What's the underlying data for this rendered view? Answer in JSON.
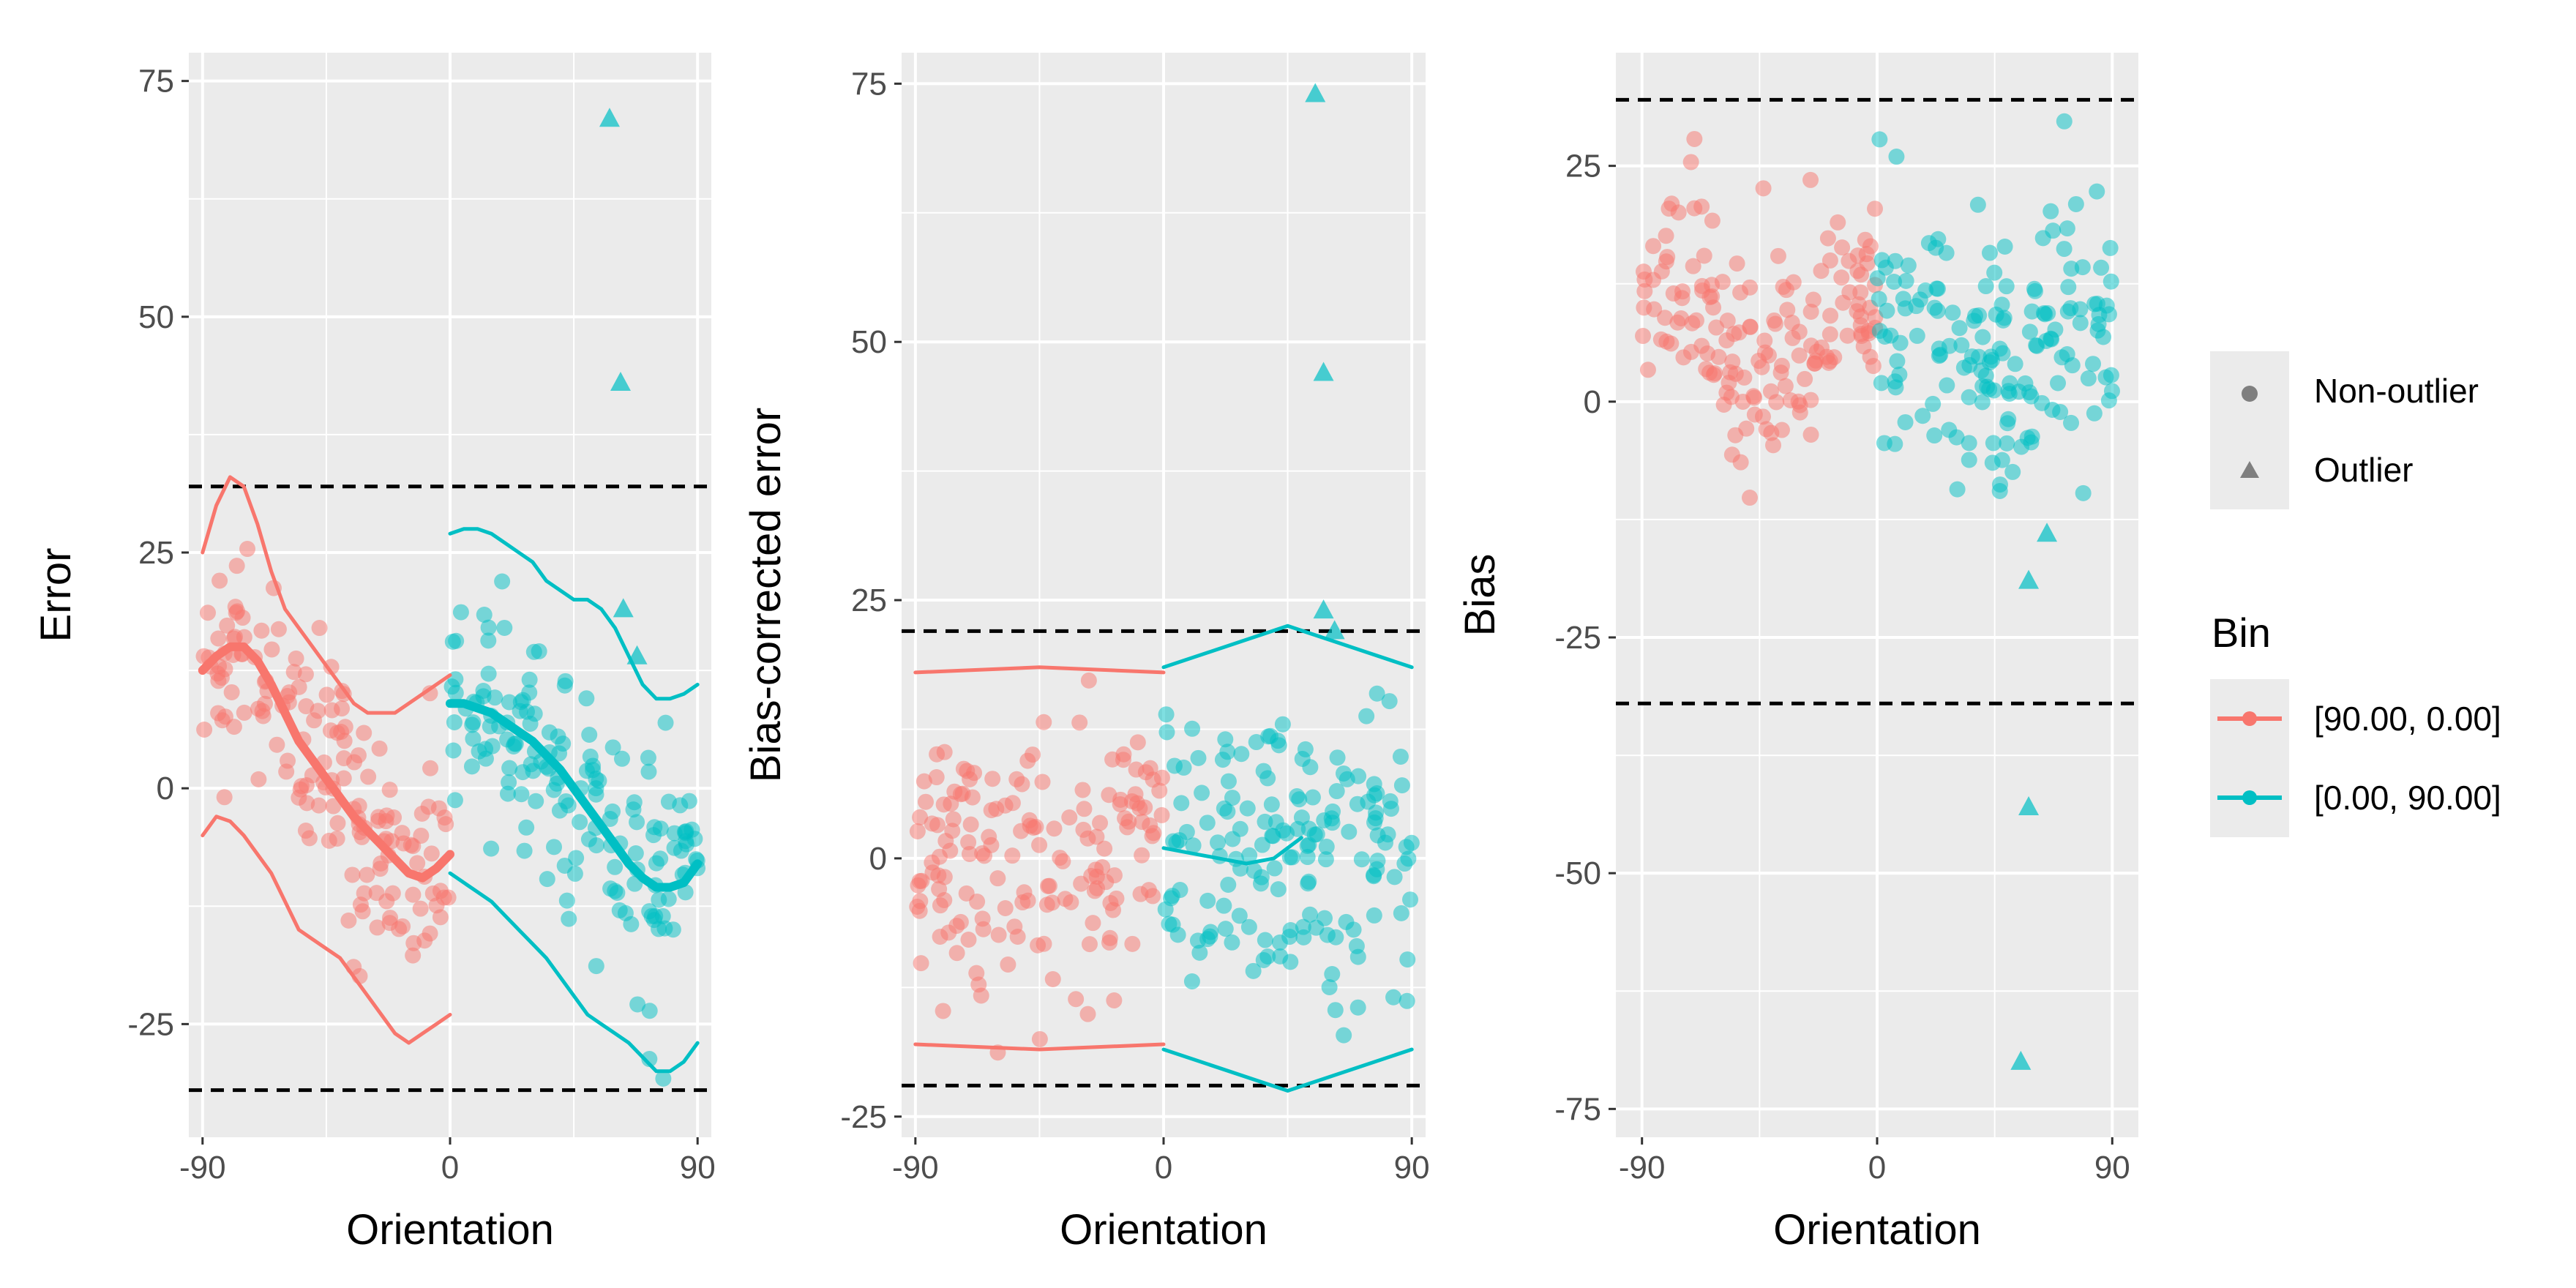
{
  "chart_data": [
    {
      "id": "error",
      "type": "scatter",
      "xlabel": "Orientation",
      "ylabel": "Error",
      "xlim": [
        -95,
        95
      ],
      "ylim": [
        -37,
        78
      ],
      "xticks": [
        -90,
        0,
        90
      ],
      "xtick_labels": [
        "-90",
        "0",
        "90"
      ],
      "yticks": [
        -25,
        0,
        25,
        50,
        75
      ],
      "ytick_labels": [
        "-25",
        "0",
        "25",
        "50",
        "75"
      ],
      "hlines": [
        32,
        -32
      ],
      "seed": 11,
      "points_per_bin": 160,
      "scatter_model": {
        "bin_a_center": [
          [
            -90,
            12
          ],
          [
            -75,
            15
          ],
          [
            -60,
            8
          ],
          [
            -45,
            1
          ],
          [
            -30,
            -4
          ],
          [
            -15,
            -9
          ],
          [
            0,
            -6
          ]
        ],
        "bin_a_spread": 6.5,
        "bin_b_center": [
          [
            0,
            9
          ],
          [
            15,
            8
          ],
          [
            30,
            5
          ],
          [
            45,
            0
          ],
          [
            60,
            -5
          ],
          [
            75,
            -10
          ],
          [
            90,
            -8
          ]
        ],
        "bin_b_spread": 6.5
      },
      "outliers": [
        {
          "x": 58,
          "y": 71
        },
        {
          "x": 62,
          "y": 43
        },
        {
          "x": 63,
          "y": 19
        },
        {
          "x": 68,
          "y": 14
        }
      ],
      "lines": [
        {
          "series": "[90.00, 0.00]",
          "width": "thick",
          "x": [
            -90,
            -85,
            -80,
            -75,
            -70,
            -65,
            -60,
            -55,
            -50,
            -45,
            -40,
            -35,
            -30,
            -25,
            -20,
            -15,
            -10,
            -5,
            0
          ],
          "y": [
            12.5,
            14,
            15,
            15,
            13.5,
            11,
            8,
            5,
            3,
            1,
            -1,
            -3,
            -4.5,
            -6,
            -7.5,
            -9,
            -9.5,
            -8.5,
            -7
          ]
        },
        {
          "series": "[90.00, 0.00]",
          "width": "thin",
          "x": [
            -90,
            -85,
            -80,
            -75,
            -70,
            -65,
            -60,
            -55,
            -50,
            -45,
            -40,
            -35,
            -30,
            -25,
            -20,
            -15,
            -10,
            -5,
            0
          ],
          "y": [
            25,
            30,
            33,
            32,
            28,
            23,
            19,
            17,
            15,
            13,
            11,
            9,
            8,
            8,
            8,
            9,
            10,
            11,
            12
          ]
        },
        {
          "series": "[90.00, 0.00]",
          "width": "thin",
          "x": [
            -90,
            -85,
            -80,
            -75,
            -70,
            -65,
            -60,
            -55,
            -50,
            -45,
            -40,
            -35,
            -30,
            -25,
            -20,
            -15,
            -10,
            -5,
            0
          ],
          "y": [
            -5,
            -3,
            -3.5,
            -5,
            -7,
            -9,
            -12,
            -15,
            -16,
            -17,
            -18,
            -20,
            -22,
            -24,
            -26,
            -27,
            -26,
            -25,
            -24
          ]
        },
        {
          "series": "[0.00, 90.00]",
          "width": "thick",
          "x": [
            0,
            5,
            10,
            15,
            20,
            25,
            30,
            35,
            40,
            45,
            50,
            55,
            60,
            65,
            70,
            75,
            80,
            85,
            90
          ],
          "y": [
            9,
            9,
            8.5,
            8,
            7,
            6,
            5,
            3.5,
            2,
            0,
            -2,
            -4,
            -6,
            -8,
            -9.5,
            -10.5,
            -10.5,
            -10,
            -8
          ]
        },
        {
          "series": "[0.00, 90.00]",
          "width": "thin",
          "x": [
            0,
            5,
            10,
            15,
            20,
            25,
            30,
            35,
            40,
            45,
            50,
            55,
            60,
            65,
            70,
            75,
            80,
            85,
            90
          ],
          "y": [
            27,
            27.5,
            27.5,
            27,
            26,
            25,
            24,
            22,
            21,
            20,
            20,
            19,
            17,
            14,
            11,
            9.5,
            9.5,
            10,
            11
          ]
        },
        {
          "series": "[0.00, 90.00]",
          "width": "thin",
          "x": [
            0,
            5,
            10,
            15,
            20,
            25,
            30,
            35,
            40,
            45,
            50,
            55,
            60,
            65,
            70,
            75,
            80,
            85,
            90
          ],
          "y": [
            -9,
            -10,
            -11,
            -12,
            -13.5,
            -15,
            -16.5,
            -18,
            -20,
            -22,
            -24,
            -25,
            -26,
            -27,
            -28.5,
            -30,
            -30,
            -29,
            -27
          ]
        }
      ]
    },
    {
      "id": "bias-corrected",
      "type": "scatter",
      "xlabel": "Orientation",
      "ylabel": "Bias-corrected error",
      "xlim": [
        -95,
        95
      ],
      "ylim": [
        -27,
        78
      ],
      "xticks": [
        -90,
        0,
        90
      ],
      "xtick_labels": [
        "-90",
        "0",
        "90"
      ],
      "yticks": [
        -25,
        0,
        25,
        50,
        75
      ],
      "ytick_labels": [
        "-25",
        "0",
        "25",
        "50",
        "75"
      ],
      "hlines": [
        22,
        -22
      ],
      "seed": 23,
      "points_per_bin": 160,
      "scatter_model": {
        "bin_a_center": [
          [
            -90,
            0
          ],
          [
            0,
            0
          ]
        ],
        "bin_a_spread": 6.5,
        "bin_b_center": [
          [
            0,
            0
          ],
          [
            90,
            0
          ]
        ],
        "bin_b_spread": 7
      },
      "outliers": [
        {
          "x": 55,
          "y": 74
        },
        {
          "x": 58,
          "y": 47
        },
        {
          "x": 58,
          "y": 24
        },
        {
          "x": 62,
          "y": 22
        }
      ],
      "lines": [
        {
          "series": "[90.00, 0.00]",
          "width": "thin",
          "x": [
            -90,
            -45,
            0
          ],
          "y": [
            18,
            18.5,
            18
          ]
        },
        {
          "series": "[90.00, 0.00]",
          "width": "thin",
          "x": [
            -90,
            -45,
            0
          ],
          "y": [
            -18,
            -18.5,
            -18
          ]
        },
        {
          "series": "[0.00, 90.00]",
          "width": "thin",
          "x": [
            0,
            45,
            90
          ],
          "y": [
            18.5,
            22.5,
            18.5
          ]
        },
        {
          "series": "[0.00, 90.00]",
          "width": "thin",
          "x": [
            0,
            45,
            90
          ],
          "y": [
            -18.5,
            -22.5,
            -18.5
          ]
        },
        {
          "series": "[0.00, 90.00]",
          "width": "thin",
          "x": [
            0,
            10,
            20,
            30,
            40,
            45,
            50
          ],
          "y": [
            1,
            0.5,
            0,
            -0.5,
            0,
            1,
            2
          ]
        }
      ]
    },
    {
      "id": "bias",
      "type": "scatter",
      "xlabel": "Orientation",
      "ylabel": "Bias",
      "xlim": [
        -100,
        100
      ],
      "ylim": [
        -78,
        37
      ],
      "xticks": [
        -90,
        0,
        90
      ],
      "xtick_labels": [
        "-90",
        "0",
        "90"
      ],
      "yticks": [
        -75,
        -50,
        -25,
        0,
        25
      ],
      "ytick_labels": [
        "-75",
        "-50",
        "-25",
        "0",
        "25"
      ],
      "hlines": [
        32,
        -32
      ],
      "seed": 37,
      "points_per_bin": 160,
      "scatter_model": {
        "bin_a_center": [
          [
            -90,
            13
          ],
          [
            -75,
            15
          ],
          [
            -60,
            5
          ],
          [
            -45,
            2
          ],
          [
            -30,
            6
          ],
          [
            -15,
            10
          ],
          [
            0,
            8
          ]
        ],
        "bin_a_spread": 6,
        "bin_b_center": [
          [
            0,
            8
          ],
          [
            20,
            8
          ],
          [
            40,
            3
          ],
          [
            55,
            2
          ],
          [
            70,
            10
          ],
          [
            90,
            9
          ]
        ],
        "bin_b_spread": 7
      },
      "outliers": [
        {
          "x": 55,
          "y": -70
        },
        {
          "x": 58,
          "y": -43
        },
        {
          "x": 58,
          "y": -19
        },
        {
          "x": 65,
          "y": -14
        }
      ],
      "lines": []
    }
  ],
  "legend": {
    "shape_items": [
      {
        "label": "Non-outlier",
        "shape": "circle"
      },
      {
        "label": "Outlier",
        "shape": "triangle"
      }
    ],
    "bin_title": "Bin",
    "bin_items": [
      {
        "label": "[90.00, 0.00]",
        "color": "#F8766D"
      },
      {
        "label": "[0.00, 90.00]",
        "color": "#00BFC4"
      }
    ]
  },
  "colors": {
    "bin_a": "#F8766D",
    "bin_b": "#00BFC4",
    "panel_bg": "#EBEBEB",
    "grid": "#FFFFFF",
    "axis_text": "#4D4D4D",
    "title_text": "#000000"
  }
}
